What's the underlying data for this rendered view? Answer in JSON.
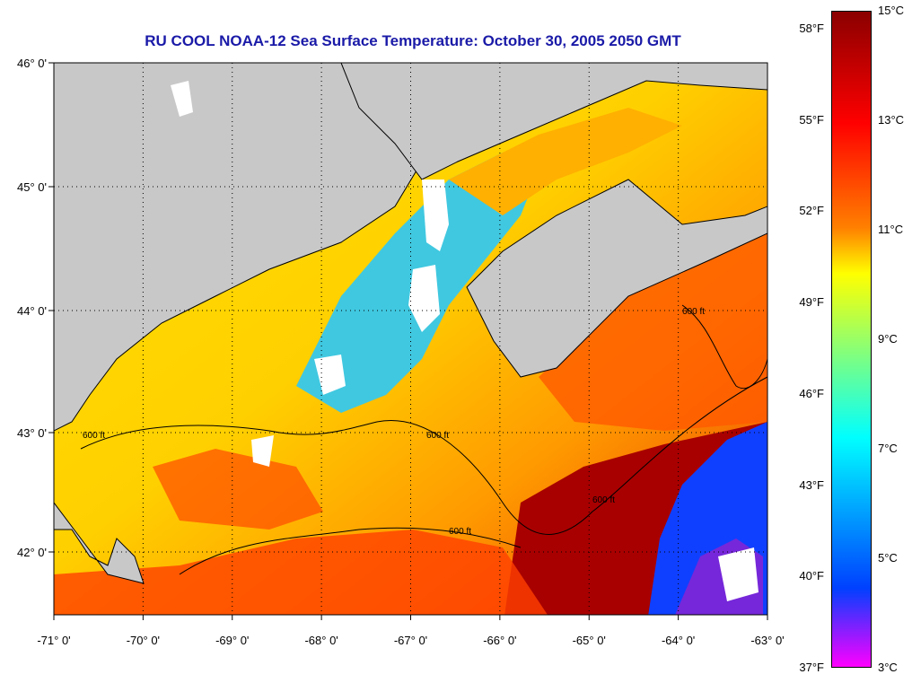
{
  "title": "RU COOL  NOAA-12  Sea Surface Temperature:  October 30, 2005 2050 GMT",
  "map": {
    "lon_labels": [
      "-71° 0'",
      "-70° 0'",
      "-69° 0'",
      "-68° 0'",
      "-67° 0'",
      "-66° 0'",
      "-65° 0'",
      "-64° 0'",
      "-63° 0'"
    ],
    "lat_labels": [
      "46° 0'",
      "45° 0'",
      "44° 0'",
      "43° 0'",
      "42° 0'"
    ],
    "contour_label": "600 ft",
    "land_color": "#c8c8c8",
    "cloud_color": "#ffffff"
  },
  "colorbar": {
    "fahrenheit": [
      "58°F",
      "55°F",
      "52°F",
      "49°F",
      "46°F",
      "43°F",
      "40°F",
      "37°F"
    ],
    "celsius": [
      "15°C",
      "13°C",
      "11°C",
      "9°C",
      "7°C",
      "5°C",
      "3°C"
    ],
    "colors": [
      "#8b0000",
      "#ff0000",
      "#ff8000",
      "#ffff00",
      "#00ffff",
      "#0040ff",
      "#ff00ff"
    ]
  }
}
